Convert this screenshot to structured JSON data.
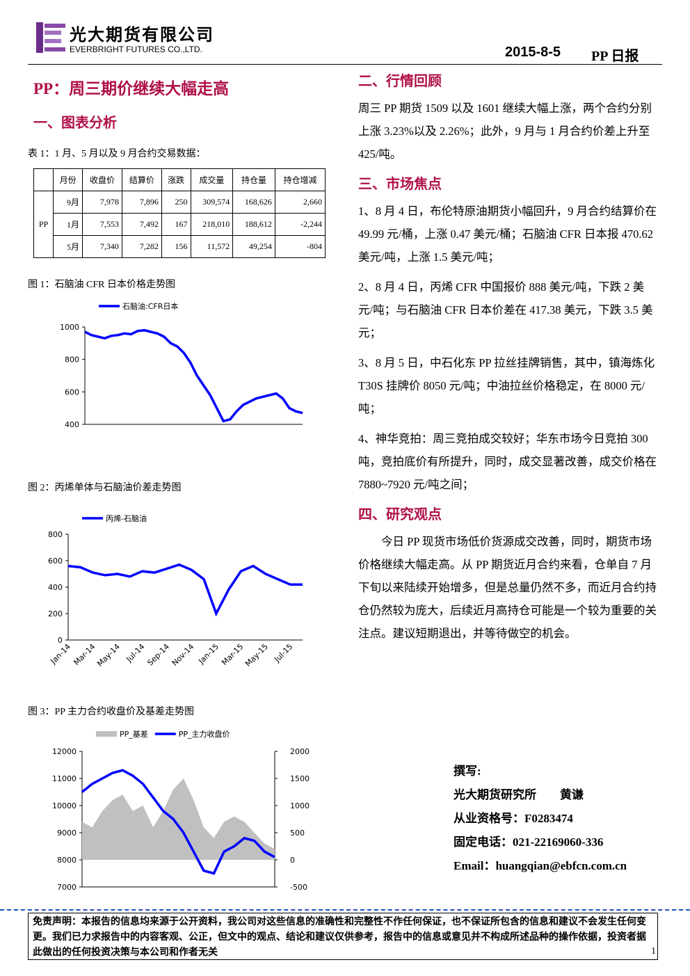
{
  "header": {
    "company_cn": "光大期货有限公司",
    "company_en": "EVERBRIGHT FUTURES CO.,LTD.",
    "date": "2015-8-5",
    "report": "PP 日报"
  },
  "title": "PP：周三期价继续大幅走高",
  "left": {
    "heading": "一、图表分析",
    "table_caption": "表 1：1 月、5 月以及 9 月合约交易数据：",
    "fig1_caption": "图 1：石脑油 CFR 日本价格走势图",
    "fig2_caption": "图 2：丙烯单体与石脑油价差走势图",
    "fig3_caption": "图 3：PP 主力合约收盘价及基差走势图"
  },
  "table": {
    "headers": [
      "月份",
      "收盘价",
      "结算价",
      "涨跌",
      "成交量",
      "持仓量",
      "持仓增减"
    ],
    "group": "PP",
    "rows": [
      [
        "9月",
        "7,978",
        "7,896",
        "250",
        "309,574",
        "168,626",
        "2,660"
      ],
      [
        "1月",
        "7,553",
        "7,492",
        "167",
        "218,010",
        "188,612",
        "-2,244"
      ],
      [
        "5月",
        "7,340",
        "7,282",
        "156",
        "11,572",
        "49,254",
        "-804"
      ]
    ]
  },
  "right": {
    "sections": [
      {
        "heading": "二、行情回顾",
        "paragraphs": [
          "周三 PP 期货 1509 以及 1601 继续大幅上涨，两个合约分别上涨 3.23%以及 2.26%；此外，9 月与 1 月合约价差上升至 425/吨。"
        ]
      },
      {
        "heading": "三、市场焦点",
        "paragraphs": [
          "1、8 月 4 日，布伦特原油期货小幅回升，9 月合约结算价在 49.99 元/桶，上涨 0.47 美元/桶；石脑油 CFR 日本报 470.62 美元/吨，上涨 1.5 美元/吨；",
          "2、8 月 4 日，丙烯 CFR 中国报价 888 美元/吨，下跌 2 美元/吨；与石脑油 CFR 日本价差在 417.38 美元，下跌 3.5 美元；",
          "3、8 月 5 日，中石化东 PP 拉丝挂牌销售，其中，镇海炼化 T30S 挂牌价 8050 元/吨；中油拉丝价格稳定，在 8000 元/吨；",
          "4、神华竞拍：周三竞拍成交较好；华东市场今日竞拍 300 吨，竞拍底价有所提升，同时，成交显著改善，成交价格在 7880~7920 元/吨之间；"
        ]
      },
      {
        "heading": "四、研究观点",
        "paragraphs": [
          "今日 PP 现货市场低价货源成交改善，同时，期货市场价格继续大幅走高。从 PP 期货近月合约来看，仓单自 7 月下旬以来陆续开始增多，但是总量仍然不多，而近月合约持仓仍然较为庞大，后续近月高持仓可能是一个较为重要的关注点。建议短期退出，并等待做空的机会。"
        ]
      }
    ]
  },
  "author": [
    "撰写:",
    "光大期货研究所　　黄谦",
    "从业资格号：F0283474",
    "固定电话：021-22169060-336",
    "Email：huangqian@ebfcn.com.cn"
  ],
  "footer": {
    "disclaimer": "免责声明：本报告的信息均来源于公开资料，我公司对这些信息的准确性和完整性不作任何保证，也不保证所包含的信息和建议不会发生任何变更。我们已力求报告中的内容客观、公正，但文中的观点、结论和建议仅供参考，报告中的信息或意见并不构成所述品种的操作依据，投资者据此做出的任何投资决策与本公司和作者无关",
    "page": "1"
  },
  "chart_data": [
    {
      "type": "line",
      "ylim": [
        400,
        1000
      ],
      "yticks": [
        400,
        600,
        800,
        1000
      ],
      "series": [
        {
          "name": "石脑油:CFR日本",
          "color": "#0000ff",
          "values": [
            970,
            950,
            940,
            930,
            945,
            950,
            960,
            955,
            975,
            980,
            970,
            960,
            940,
            900,
            880,
            840,
            780,
            700,
            640,
            580,
            500,
            420,
            430,
            480,
            520,
            540,
            560,
            570,
            580,
            590,
            560,
            500,
            480,
            470
          ]
        }
      ]
    },
    {
      "type": "line",
      "ylim": [
        0,
        800
      ],
      "yticks": [
        0,
        200,
        400,
        600,
        800
      ],
      "categories": [
        "Jan-14",
        null,
        "Mar-14",
        null,
        "May-14",
        null,
        "Jul-14",
        null,
        "Sep-14",
        null,
        "Nov-14",
        null,
        "Jan-15",
        null,
        "Mar-15",
        null,
        "May-15",
        null,
        "Jul-15",
        null
      ],
      "series": [
        {
          "name": "丙烯-石脑油",
          "color": "#0000ff",
          "values": [
            560,
            550,
            510,
            490,
            500,
            480,
            520,
            510,
            540,
            570,
            530,
            460,
            200,
            380,
            520,
            560,
            500,
            460,
            420,
            420
          ]
        }
      ]
    },
    {
      "type": "line",
      "ylim": [
        7000,
        12000
      ],
      "yticks": [
        7000,
        8000,
        9000,
        10000,
        11000,
        12000
      ],
      "y2lim": [
        -500,
        2000
      ],
      "y2ticks": [
        -500,
        0,
        500,
        1000,
        1500,
        2000
      ],
      "series": [
        {
          "name": "PP_基差",
          "color": "#c0c0c0",
          "kind": "area",
          "axis": "y2",
          "values": [
            700,
            600,
            900,
            1100,
            1200,
            900,
            1000,
            600,
            900,
            1300,
            1500,
            1100,
            600,
            400,
            700,
            800,
            700,
            500,
            300,
            200
          ]
        },
        {
          "name": "PP_主力收盘价",
          "color": "#0000ff",
          "values": [
            10500,
            10800,
            11000,
            11200,
            11300,
            11100,
            10800,
            10300,
            9800,
            9500,
            9000,
            8300,
            7600,
            7500,
            8300,
            8500,
            8800,
            8700,
            8300,
            8100
          ]
        }
      ]
    }
  ]
}
